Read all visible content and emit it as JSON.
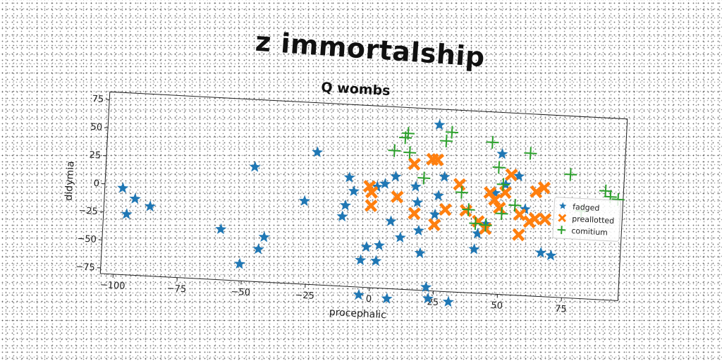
{
  "figure": {
    "title": "z immortalship"
  },
  "chart_data": {
    "type": "scatter",
    "title": "Q wombs",
    "xlabel": "procephalic",
    "ylabel": "didymia",
    "xlim": [
      -105,
      97
    ],
    "ylim": [
      -80,
      82
    ],
    "xticks": [
      -100,
      -75,
      -50,
      -25,
      0,
      25,
      50,
      75
    ],
    "yticks": [
      -75,
      -50,
      -25,
      0,
      25,
      50,
      75
    ],
    "grid": false,
    "legend_position": "right",
    "series": [
      {
        "name": "fadged",
        "color": "#1f77b4",
        "marker": "star",
        "points": [
          [
            -98,
            -3
          ],
          [
            -96,
            -26
          ],
          [
            -93,
            -12
          ],
          [
            -87,
            -18
          ],
          [
            -59,
            -35
          ],
          [
            -51,
            -65
          ],
          [
            -47,
            22
          ],
          [
            -44,
            -51
          ],
          [
            -42,
            -40
          ],
          [
            -27,
            -6
          ],
          [
            -23,
            38
          ],
          [
            -12,
            -18
          ],
          [
            -11,
            -8
          ],
          [
            -10,
            17
          ],
          [
            -8,
            5
          ],
          [
            -4,
            -56
          ],
          [
            -4,
            -87
          ],
          [
            -2,
            -44
          ],
          [
            1,
            10
          ],
          [
            2,
            -56
          ],
          [
            3,
            -42
          ],
          [
            4,
            13
          ],
          [
            7,
            -20
          ],
          [
            7,
            -89
          ],
          [
            8,
            20
          ],
          [
            11,
            -34
          ],
          [
            16,
            12
          ],
          [
            17,
            -2
          ],
          [
            18,
            -27
          ],
          [
            19,
            -47
          ],
          [
            22,
            -77
          ],
          [
            23,
            -87
          ],
          [
            24,
            -12
          ],
          [
            24,
            68
          ],
          [
            25,
            5
          ],
          [
            27,
            22
          ],
          [
            31,
            -89
          ],
          [
            40,
            -41
          ],
          [
            41,
            -27
          ],
          [
            44,
            -18
          ],
          [
            47,
            10
          ],
          [
            49,
            45
          ],
          [
            51,
            18
          ],
          [
            56,
            26
          ],
          [
            59,
            -3
          ],
          [
            66,
            -41
          ],
          [
            70,
            -43
          ]
        ]
      },
      {
        "name": "preallotted",
        "color": "#ff7f0e",
        "marker": "x",
        "points": [
          [
            -2,
            10
          ],
          [
            -1,
            -7
          ],
          [
            -1,
            5
          ],
          [
            9,
            2
          ],
          [
            15,
            32
          ],
          [
            16,
            -12
          ],
          [
            22,
            37
          ],
          [
            24,
            -21
          ],
          [
            24,
            37
          ],
          [
            28,
            -7
          ],
          [
            33,
            16
          ],
          [
            36,
            -7
          ],
          [
            41,
            -16
          ],
          [
            44,
            -22
          ],
          [
            45,
            10
          ],
          [
            47,
            4
          ],
          [
            49,
            -3
          ],
          [
            51,
            11
          ],
          [
            53,
            27
          ],
          [
            57,
            -8
          ],
          [
            57,
            -26
          ],
          [
            61,
            -14
          ],
          [
            63,
            -11
          ],
          [
            63,
            13
          ],
          [
            66,
            17
          ],
          [
            67,
            -11
          ]
        ]
      },
      {
        "name": "comitium",
        "color": "#2ca02c",
        "marker": "plus",
        "points": [
          [
            7,
            43
          ],
          [
            11,
            55
          ],
          [
            12,
            59
          ],
          [
            13,
            42
          ],
          [
            19,
            20
          ],
          [
            27,
            54
          ],
          [
            29,
            62
          ],
          [
            34,
            9
          ],
          [
            37,
            -6
          ],
          [
            40,
            -18
          ],
          [
            44,
            -19
          ],
          [
            45,
            55
          ],
          [
            48,
            33
          ],
          [
            50,
            -8
          ],
          [
            50,
            18
          ],
          [
            55,
            0
          ],
          [
            60,
            47
          ],
          [
            76,
            30
          ],
          [
            81,
            -2
          ],
          [
            90,
            17
          ],
          [
            92,
            12
          ],
          [
            95,
            10
          ]
        ]
      }
    ]
  }
}
